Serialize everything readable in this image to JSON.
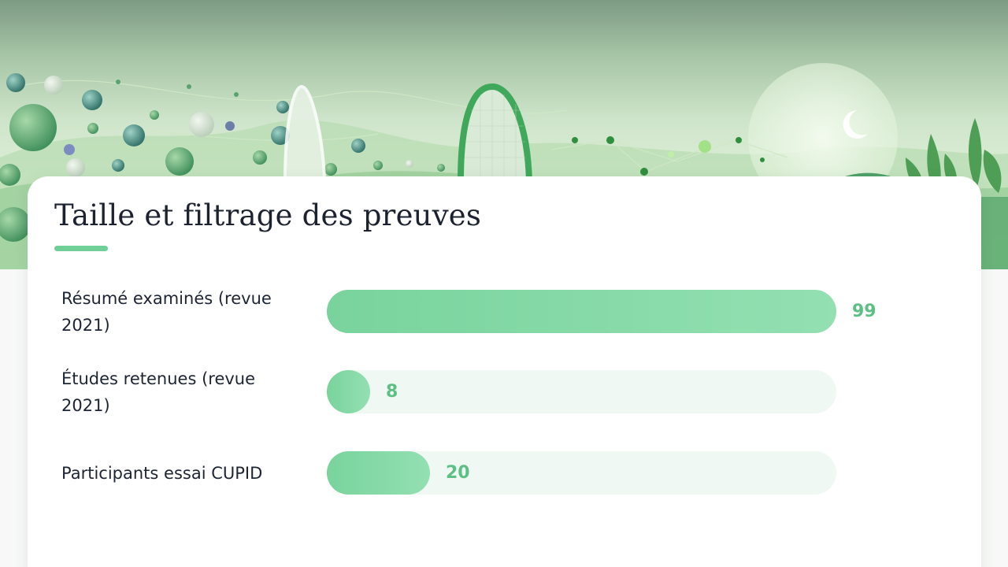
{
  "colors": {
    "accent": "#6fcf97",
    "bar_start": "#79d39c",
    "bar_end": "#93e0b2",
    "track": "#eff8f2",
    "value_text": "#5cbf84",
    "title_text": "#1d2230"
  },
  "chart_data": {
    "type": "bar",
    "orientation": "horizontal",
    "title": "Taille et filtrage des preuves",
    "categories": [
      "Résumé examinés (revue 2021)",
      "Études retenues (revue 2021)",
      "Participants essai CUPID"
    ],
    "values": [
      99,
      8,
      20
    ],
    "xlim": [
      0,
      99
    ],
    "grid": false
  }
}
